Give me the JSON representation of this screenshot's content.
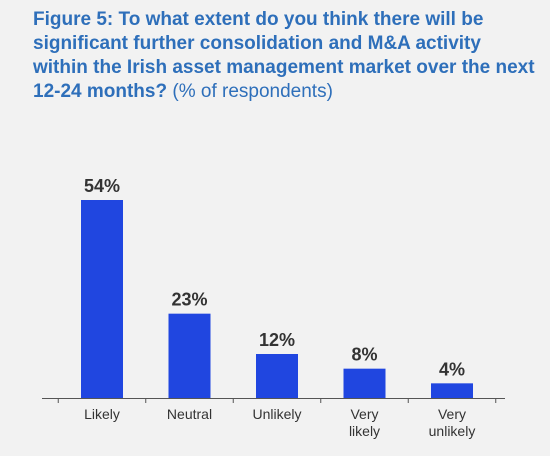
{
  "chart_data": {
    "type": "bar",
    "title": "Figure 5: To what extent do you think there will be significant further consolidation and M&A activity within the Irish asset management market over the next 12-24 months?",
    "subtitle": "(% of respondents)",
    "categories": [
      "Likely",
      "Neutral",
      "Unlikely",
      "Very likely",
      "Very unlikely"
    ],
    "category_lines": [
      [
        "Likely"
      ],
      [
        "Neutral"
      ],
      [
        "Unlikely"
      ],
      [
        "Very",
        "likely"
      ],
      [
        "Very",
        "unlikely"
      ]
    ],
    "values": [
      54,
      23,
      12,
      8,
      4
    ],
    "value_labels": [
      "54%",
      "23%",
      "12%",
      "8%",
      "4%"
    ],
    "ylim": [
      0,
      54
    ],
    "grid": false,
    "bar_color": "#2046e0",
    "axis_color": "#555555",
    "text_color": "#333333",
    "title_color": "#2e6fba"
  }
}
